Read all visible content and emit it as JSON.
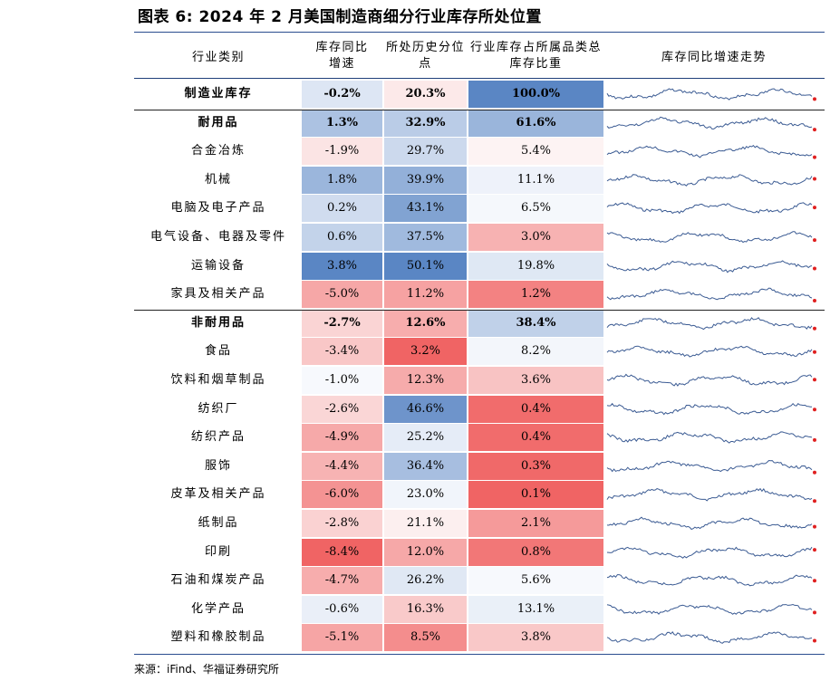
{
  "title": "图表 6:  2024 年 2 月美国制造商细分行业库存所处位置",
  "headers": {
    "name": "行业类别",
    "col1": "库存同比增速",
    "col2": "所处历史分位点",
    "col3": "行业库存占所属品类总库存比重",
    "trend": "库存同比增速走势"
  },
  "colors": {
    "rule": "#2a4d8f",
    "spark_line": "#3b5b93",
    "spark_end": "#e02020",
    "blue_max": "#5a86c4",
    "red_max": "#f06464"
  },
  "rows": [
    {
      "name": "制造业库存",
      "yoy": "-0.2%",
      "pct": "20.3%",
      "share": "100.0%",
      "bold": true,
      "yoy_val": -0.2,
      "pct_val": 20.3,
      "share_val": 100.0
    },
    {
      "name": "耐用品",
      "yoy": "1.3%",
      "pct": "32.9%",
      "share": "61.6%",
      "bold": true,
      "yoy_val": 1.3,
      "pct_val": 32.9,
      "share_val": 61.6
    },
    {
      "name": "合金冶炼",
      "yoy": "-1.9%",
      "pct": "29.7%",
      "share": "5.4%",
      "bold": false,
      "yoy_val": -1.9,
      "pct_val": 29.7,
      "share_val": 5.4
    },
    {
      "name": "机械",
      "yoy": "1.8%",
      "pct": "39.9%",
      "share": "11.1%",
      "bold": false,
      "yoy_val": 1.8,
      "pct_val": 39.9,
      "share_val": 11.1
    },
    {
      "name": "电脑及电子产品",
      "yoy": "0.2%",
      "pct": "43.1%",
      "share": "6.5%",
      "bold": false,
      "yoy_val": 0.2,
      "pct_val": 43.1,
      "share_val": 6.5
    },
    {
      "name": "电气设备、电器及零件",
      "yoy": "0.6%",
      "pct": "37.5%",
      "share": "3.0%",
      "bold": false,
      "yoy_val": 0.6,
      "pct_val": 37.5,
      "share_val": 3.0
    },
    {
      "name": "运输设备",
      "yoy": "3.8%",
      "pct": "50.1%",
      "share": "19.8%",
      "bold": false,
      "yoy_val": 3.8,
      "pct_val": 50.1,
      "share_val": 19.8
    },
    {
      "name": "家具及相关产品",
      "yoy": "-5.0%",
      "pct": "11.2%",
      "share": "1.2%",
      "bold": false,
      "yoy_val": -5.0,
      "pct_val": 11.2,
      "share_val": 1.2
    },
    {
      "name": "非耐用品",
      "yoy": "-2.7%",
      "pct": "12.6%",
      "share": "38.4%",
      "bold": true,
      "yoy_val": -2.7,
      "pct_val": 12.6,
      "share_val": 38.4
    },
    {
      "name": "食品",
      "yoy": "-3.4%",
      "pct": "3.2%",
      "share": "8.2%",
      "bold": false,
      "yoy_val": -3.4,
      "pct_val": 3.2,
      "share_val": 8.2
    },
    {
      "name": "饮料和烟草制品",
      "yoy": "-1.0%",
      "pct": "12.3%",
      "share": "3.6%",
      "bold": false,
      "yoy_val": -1.0,
      "pct_val": 12.3,
      "share_val": 3.6
    },
    {
      "name": "纺织厂",
      "yoy": "-2.6%",
      "pct": "46.6%",
      "share": "0.4%",
      "bold": false,
      "yoy_val": -2.6,
      "pct_val": 46.6,
      "share_val": 0.4
    },
    {
      "name": "纺织产品",
      "yoy": "-4.9%",
      "pct": "25.2%",
      "share": "0.4%",
      "bold": false,
      "yoy_val": -4.9,
      "pct_val": 25.2,
      "share_val": 0.4
    },
    {
      "name": "服饰",
      "yoy": "-4.4%",
      "pct": "36.4%",
      "share": "0.3%",
      "bold": false,
      "yoy_val": -4.4,
      "pct_val": 36.4,
      "share_val": 0.3
    },
    {
      "name": "皮革及相关产品",
      "yoy": "-6.0%",
      "pct": "23.0%",
      "share": "0.1%",
      "bold": false,
      "yoy_val": -6.0,
      "pct_val": 23.0,
      "share_val": 0.1
    },
    {
      "name": "纸制品",
      "yoy": "-2.8%",
      "pct": "21.1%",
      "share": "2.1%",
      "bold": false,
      "yoy_val": -2.8,
      "pct_val": 21.1,
      "share_val": 2.1
    },
    {
      "name": "印刷",
      "yoy": "-8.4%",
      "pct": "12.0%",
      "share": "0.8%",
      "bold": false,
      "yoy_val": -8.4,
      "pct_val": 12.0,
      "share_val": 0.8
    },
    {
      "name": "石油和煤炭产品",
      "yoy": "-4.7%",
      "pct": "26.2%",
      "share": "5.6%",
      "bold": false,
      "yoy_val": -4.7,
      "pct_val": 26.2,
      "share_val": 5.6
    },
    {
      "name": "化学产品",
      "yoy": "-0.6%",
      "pct": "16.3%",
      "share": "13.1%",
      "bold": false,
      "yoy_val": -0.6,
      "pct_val": 16.3,
      "share_val": 13.1
    },
    {
      "name": "塑料和橡胶制品",
      "yoy": "-5.1%",
      "pct": "8.5%",
      "share": "3.8%",
      "bold": false,
      "yoy_val": -5.1,
      "pct_val": 8.5,
      "share_val": 3.8
    }
  ],
  "source": "来源：iFind、华福证券研究所"
}
